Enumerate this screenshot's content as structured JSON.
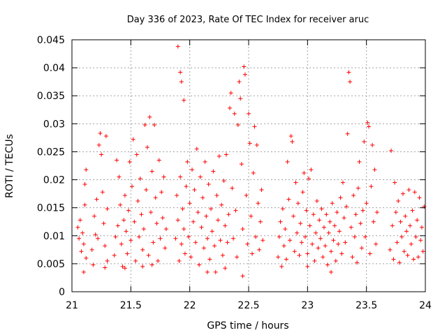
{
  "chart_data": {
    "type": "scatter",
    "title": "Day 336 of 2023, Rate Of TEC Index for receiver aruc",
    "xlabel": "GPS time / hours",
    "ylabel": "ROTI / TECUs",
    "xlim": [
      21,
      24
    ],
    "ylim": [
      0,
      0.045
    ],
    "xticks": [
      "21",
      "21.5",
      "22",
      "22.5",
      "23",
      "23.5",
      "24"
    ],
    "yticks": [
      "0",
      "0.005",
      "0.01",
      "0.015",
      "0.02",
      "0.025",
      "0.03",
      "0.035",
      "0.04",
      "0.045"
    ],
    "grid": true,
    "marker": "+",
    "color": "#ff0000",
    "series": [
      {
        "name": "ROTI",
        "points": [
          [
            21.05,
            0.0115
          ],
          [
            21.06,
            0.0095
          ],
          [
            21.07,
            0.0128
          ],
          [
            21.08,
            0.0072
          ],
          [
            21.09,
            0.0105
          ],
          [
            21.1,
            0.0085
          ],
          [
            21.1,
            0.0035
          ],
          [
            21.11,
            0.0192
          ],
          [
            21.12,
            0.0218
          ],
          [
            21.11,
            0.0155
          ],
          [
            21.12,
            0.006
          ],
          [
            21.17,
            0.0075
          ],
          [
            21.18,
            0.0048
          ],
          [
            21.19,
            0.0135
          ],
          [
            21.2,
            0.0102
          ],
          [
            21.21,
            0.0165
          ],
          [
            21.22,
            0.0095
          ],
          [
            21.23,
            0.0262
          ],
          [
            21.24,
            0.0283
          ],
          [
            21.25,
            0.0245
          ],
          [
            21.26,
            0.0178
          ],
          [
            21.27,
            0.0122
          ],
          [
            21.28,
            0.0082
          ],
          [
            21.29,
            0.0278
          ],
          [
            21.3,
            0.0055
          ],
          [
            21.3,
            0.0148
          ],
          [
            21.28,
            0.0043
          ],
          [
            21.36,
            0.0065
          ],
          [
            21.37,
            0.0098
          ],
          [
            21.38,
            0.0235
          ],
          [
            21.39,
            0.0118
          ],
          [
            21.4,
            0.0205
          ],
          [
            21.41,
            0.0155
          ],
          [
            21.42,
            0.0085
          ],
          [
            21.43,
            0.0045
          ],
          [
            21.44,
            0.0128
          ],
          [
            21.45,
            0.0172
          ],
          [
            21.46,
            0.0108
          ],
          [
            21.47,
            0.0068
          ],
          [
            21.48,
            0.0145
          ],
          [
            21.49,
            0.0232
          ],
          [
            21.5,
            0.0092
          ],
          [
            21.51,
            0.0188
          ],
          [
            21.52,
            0.0272
          ],
          [
            21.53,
            0.0125
          ],
          [
            21.54,
            0.0055
          ],
          [
            21.55,
            0.0245
          ],
          [
            21.56,
            0.0162
          ],
          [
            21.57,
            0.0098
          ],
          [
            21.58,
            0.0202
          ],
          [
            21.59,
            0.0138
          ],
          [
            21.6,
            0.0075
          ],
          [
            21.61,
            0.0112
          ],
          [
            21.62,
            0.0298
          ],
          [
            21.63,
            0.0182
          ],
          [
            21.64,
            0.0258
          ],
          [
            21.65,
            0.0065
          ],
          [
            21.66,
            0.0312
          ],
          [
            21.67,
            0.0142
          ],
          [
            21.68,
            0.0215
          ],
          [
            21.69,
            0.0088
          ],
          [
            21.7,
            0.0298
          ],
          [
            21.71,
            0.0168
          ],
          [
            21.72,
            0.0122
          ],
          [
            21.73,
            0.0055
          ],
          [
            21.74,
            0.0235
          ],
          [
            21.75,
            0.0095
          ],
          [
            21.76,
            0.0178
          ],
          [
            21.77,
            0.0132
          ],
          [
            21.78,
            0.0205
          ],
          [
            21.79,
            0.0078
          ],
          [
            21.8,
            0.0112
          ],
          [
            21.6,
            0.0045
          ],
          [
            21.45,
            0.0042
          ],
          [
            21.68,
            0.0048
          ],
          [
            21.9,
            0.0438
          ],
          [
            21.92,
            0.0392
          ],
          [
            21.93,
            0.0375
          ],
          [
            21.95,
            0.0342
          ],
          [
            21.88,
            0.0095
          ],
          [
            21.89,
            0.0172
          ],
          [
            21.9,
            0.0128
          ],
          [
            21.91,
            0.0055
          ],
          [
            21.92,
            0.0205
          ],
          [
            21.93,
            0.0085
          ],
          [
            21.94,
            0.0148
          ],
          [
            21.95,
            0.0112
          ],
          [
            21.96,
            0.0068
          ],
          [
            21.97,
            0.0188
          ],
          [
            21.98,
            0.0232
          ],
          [
            21.99,
            0.0098
          ],
          [
            22.0,
            0.0158
          ],
          [
            22.01,
            0.0062
          ],
          [
            22.02,
            0.0218
          ],
          [
            22.03,
            0.0125
          ],
          [
            22.04,
            0.0182
          ],
          [
            22.05,
            0.0088
          ],
          [
            22.06,
            0.0255
          ],
          [
            22.07,
            0.0142
          ],
          [
            22.08,
            0.0048
          ],
          [
            22.09,
            0.0205
          ],
          [
            22.1,
            0.0115
          ],
          [
            22.11,
            0.0168
          ],
          [
            22.12,
            0.0078
          ],
          [
            22.13,
            0.0232
          ],
          [
            22.14,
            0.0135
          ],
          [
            22.15,
            0.0095
          ],
          [
            22.16,
            0.0192
          ],
          [
            22.17,
            0.0058
          ],
          [
            22.18,
            0.0148
          ],
          [
            22.19,
            0.0108
          ],
          [
            22.2,
            0.0215
          ],
          [
            22.21,
            0.0082
          ],
          [
            22.22,
            0.0035
          ],
          [
            22.23,
            0.0172
          ],
          [
            22.24,
            0.0128
          ],
          [
            22.25,
            0.0242
          ],
          [
            22.26,
            0.0092
          ],
          [
            22.27,
            0.0155
          ],
          [
            22.28,
            0.0065
          ],
          [
            22.29,
            0.0198
          ],
          [
            22.3,
            0.0118
          ],
          [
            22.31,
            0.0245
          ],
          [
            22.32,
            0.0088
          ],
          [
            22.33,
            0.0138
          ],
          [
            22.34,
            0.0328
          ],
          [
            22.35,
            0.0355
          ],
          [
            22.36,
            0.0185
          ],
          [
            22.37,
            0.0095
          ],
          [
            22.38,
            0.0318
          ],
          [
            22.39,
            0.0145
          ],
          [
            22.4,
            0.0062
          ],
          [
            22.41,
            0.0298
          ],
          [
            22.42,
            0.0375
          ],
          [
            22.43,
            0.0345
          ],
          [
            22.44,
            0.0228
          ],
          [
            22.45,
            0.0112
          ],
          [
            22.46,
            0.0402
          ],
          [
            22.47,
            0.0388
          ],
          [
            22.48,
            0.0172
          ],
          [
            22.49,
            0.0085
          ],
          [
            22.5,
            0.0318
          ],
          [
            22.51,
            0.0265
          ],
          [
            22.52,
            0.0135
          ],
          [
            22.53,
            0.0068
          ],
          [
            22.54,
            0.0212
          ],
          [
            22.55,
            0.0295
          ],
          [
            22.56,
            0.0098
          ],
          [
            22.57,
            0.0262
          ],
          [
            22.58,
            0.0158
          ],
          [
            22.59,
            0.0075
          ],
          [
            22.6,
            0.0125
          ],
          [
            22.61,
            0.0182
          ],
          [
            22.62,
            0.0092
          ],
          [
            22.15,
            0.0035
          ],
          [
            22.45,
            0.0028
          ],
          [
            22.3,
            0.0042
          ],
          [
            22.75,
            0.0062
          ],
          [
            22.76,
            0.0098
          ],
          [
            22.77,
            0.0125
          ],
          [
            22.78,
            0.0045
          ],
          [
            22.79,
            0.0148
          ],
          [
            22.8,
            0.0082
          ],
          [
            22.81,
            0.0112
          ],
          [
            22.82,
            0.0058
          ],
          [
            22.83,
            0.0232
          ],
          [
            22.84,
            0.0165
          ],
          [
            22.85,
            0.0092
          ],
          [
            22.86,
            0.0278
          ],
          [
            22.87,
            0.0268
          ],
          [
            22.88,
            0.0135
          ],
          [
            22.89,
            0.0072
          ],
          [
            22.9,
            0.0195
          ],
          [
            22.91,
            0.0105
          ],
          [
            22.92,
            0.0158
          ],
          [
            22.93,
            0.0065
          ],
          [
            22.94,
            0.0122
          ],
          [
            22.95,
            0.0088
          ],
          [
            22.96,
            0.0178
          ],
          [
            22.97,
            0.0212
          ],
          [
            22.98,
            0.0098
          ],
          [
            22.99,
            0.0145
          ],
          [
            23.0,
            0.0068
          ],
          [
            23.01,
            0.0202
          ],
          [
            23.02,
            0.0118
          ],
          [
            23.03,
            0.0218
          ],
          [
            23.04,
            0.0085
          ],
          [
            23.05,
            0.0138
          ],
          [
            23.06,
            0.0055
          ],
          [
            23.07,
            0.0105
          ],
          [
            23.08,
            0.0162
          ],
          [
            23.09,
            0.0078
          ],
          [
            23.1,
            0.0128
          ],
          [
            23.11,
            0.0095
          ],
          [
            23.12,
            0.0148
          ],
          [
            23.13,
            0.0062
          ],
          [
            23.14,
            0.0115
          ],
          [
            23.15,
            0.0082
          ],
          [
            23.16,
            0.0138
          ],
          [
            23.17,
            0.0048
          ],
          [
            23.18,
            0.0105
          ],
          [
            23.19,
            0.0125
          ],
          [
            23.2,
            0.0072
          ],
          [
            23.21,
            0.0158
          ],
          [
            23.22,
            0.0092
          ],
          [
            23.23,
            0.0118
          ],
          [
            23.24,
            0.0055
          ],
          [
            23.25,
            0.0142
          ],
          [
            23.26,
            0.0085
          ],
          [
            23.27,
            0.0108
          ],
          [
            23.28,
            0.0168
          ],
          [
            23.29,
            0.0068
          ],
          [
            23.3,
            0.0195
          ],
          [
            23.31,
            0.0132
          ],
          [
            23.32,
            0.0088
          ],
          [
            23.33,
            0.0152
          ],
          [
            23.34,
            0.0282
          ],
          [
            23.35,
            0.0392
          ],
          [
            23.36,
            0.0375
          ],
          [
            23.37,
            0.0115
          ],
          [
            23.38,
            0.0062
          ],
          [
            23.39,
            0.0172
          ],
          [
            23.4,
            0.0098
          ],
          [
            23.41,
            0.0138
          ],
          [
            23.42,
            0.0052
          ],
          [
            23.43,
            0.0185
          ],
          [
            23.44,
            0.0232
          ],
          [
            23.45,
            0.0122
          ],
          [
            23.46,
            0.0078
          ],
          [
            23.47,
            0.0145
          ],
          [
            23.48,
            0.0268
          ],
          [
            23.49,
            0.0098
          ],
          [
            23.5,
            0.0158
          ],
          [
            23.51,
            0.0302
          ],
          [
            23.52,
            0.0295
          ],
          [
            23.53,
            0.0068
          ],
          [
            23.54,
            0.0188
          ],
          [
            23.55,
            0.0262
          ],
          [
            23.56,
            0.0125
          ],
          [
            23.57,
            0.0218
          ],
          [
            23.58,
            0.0085
          ],
          [
            23.59,
            0.0142
          ],
          [
            23.2,
            0.0035
          ],
          [
            23.0,
            0.0045
          ],
          [
            23.7,
            0.0075
          ],
          [
            23.71,
            0.0252
          ],
          [
            23.72,
            0.0118
          ],
          [
            23.73,
            0.0058
          ],
          [
            23.74,
            0.0195
          ],
          [
            23.75,
            0.0142
          ],
          [
            23.76,
            0.0088
          ],
          [
            23.77,
            0.0162
          ],
          [
            23.78,
            0.0052
          ],
          [
            23.79,
            0.0125
          ],
          [
            23.8,
            0.0098
          ],
          [
            23.81,
            0.0175
          ],
          [
            23.82,
            0.0072
          ],
          [
            23.83,
            0.0135
          ],
          [
            23.84,
            0.0108
          ],
          [
            23.85,
            0.0065
          ],
          [
            23.86,
            0.0182
          ],
          [
            23.87,
            0.0118
          ],
          [
            23.88,
            0.0085
          ],
          [
            23.89,
            0.0145
          ],
          [
            23.9,
            0.0058
          ],
          [
            23.91,
            0.0178
          ],
          [
            23.92,
            0.0098
          ],
          [
            23.93,
            0.0128
          ],
          [
            23.94,
            0.0062
          ],
          [
            23.95,
            0.0168
          ],
          [
            23.96,
            0.0092
          ],
          [
            23.97,
            0.0115
          ],
          [
            23.98,
            0.0072
          ],
          [
            23.99,
            0.0152
          ]
        ]
      }
    ]
  }
}
